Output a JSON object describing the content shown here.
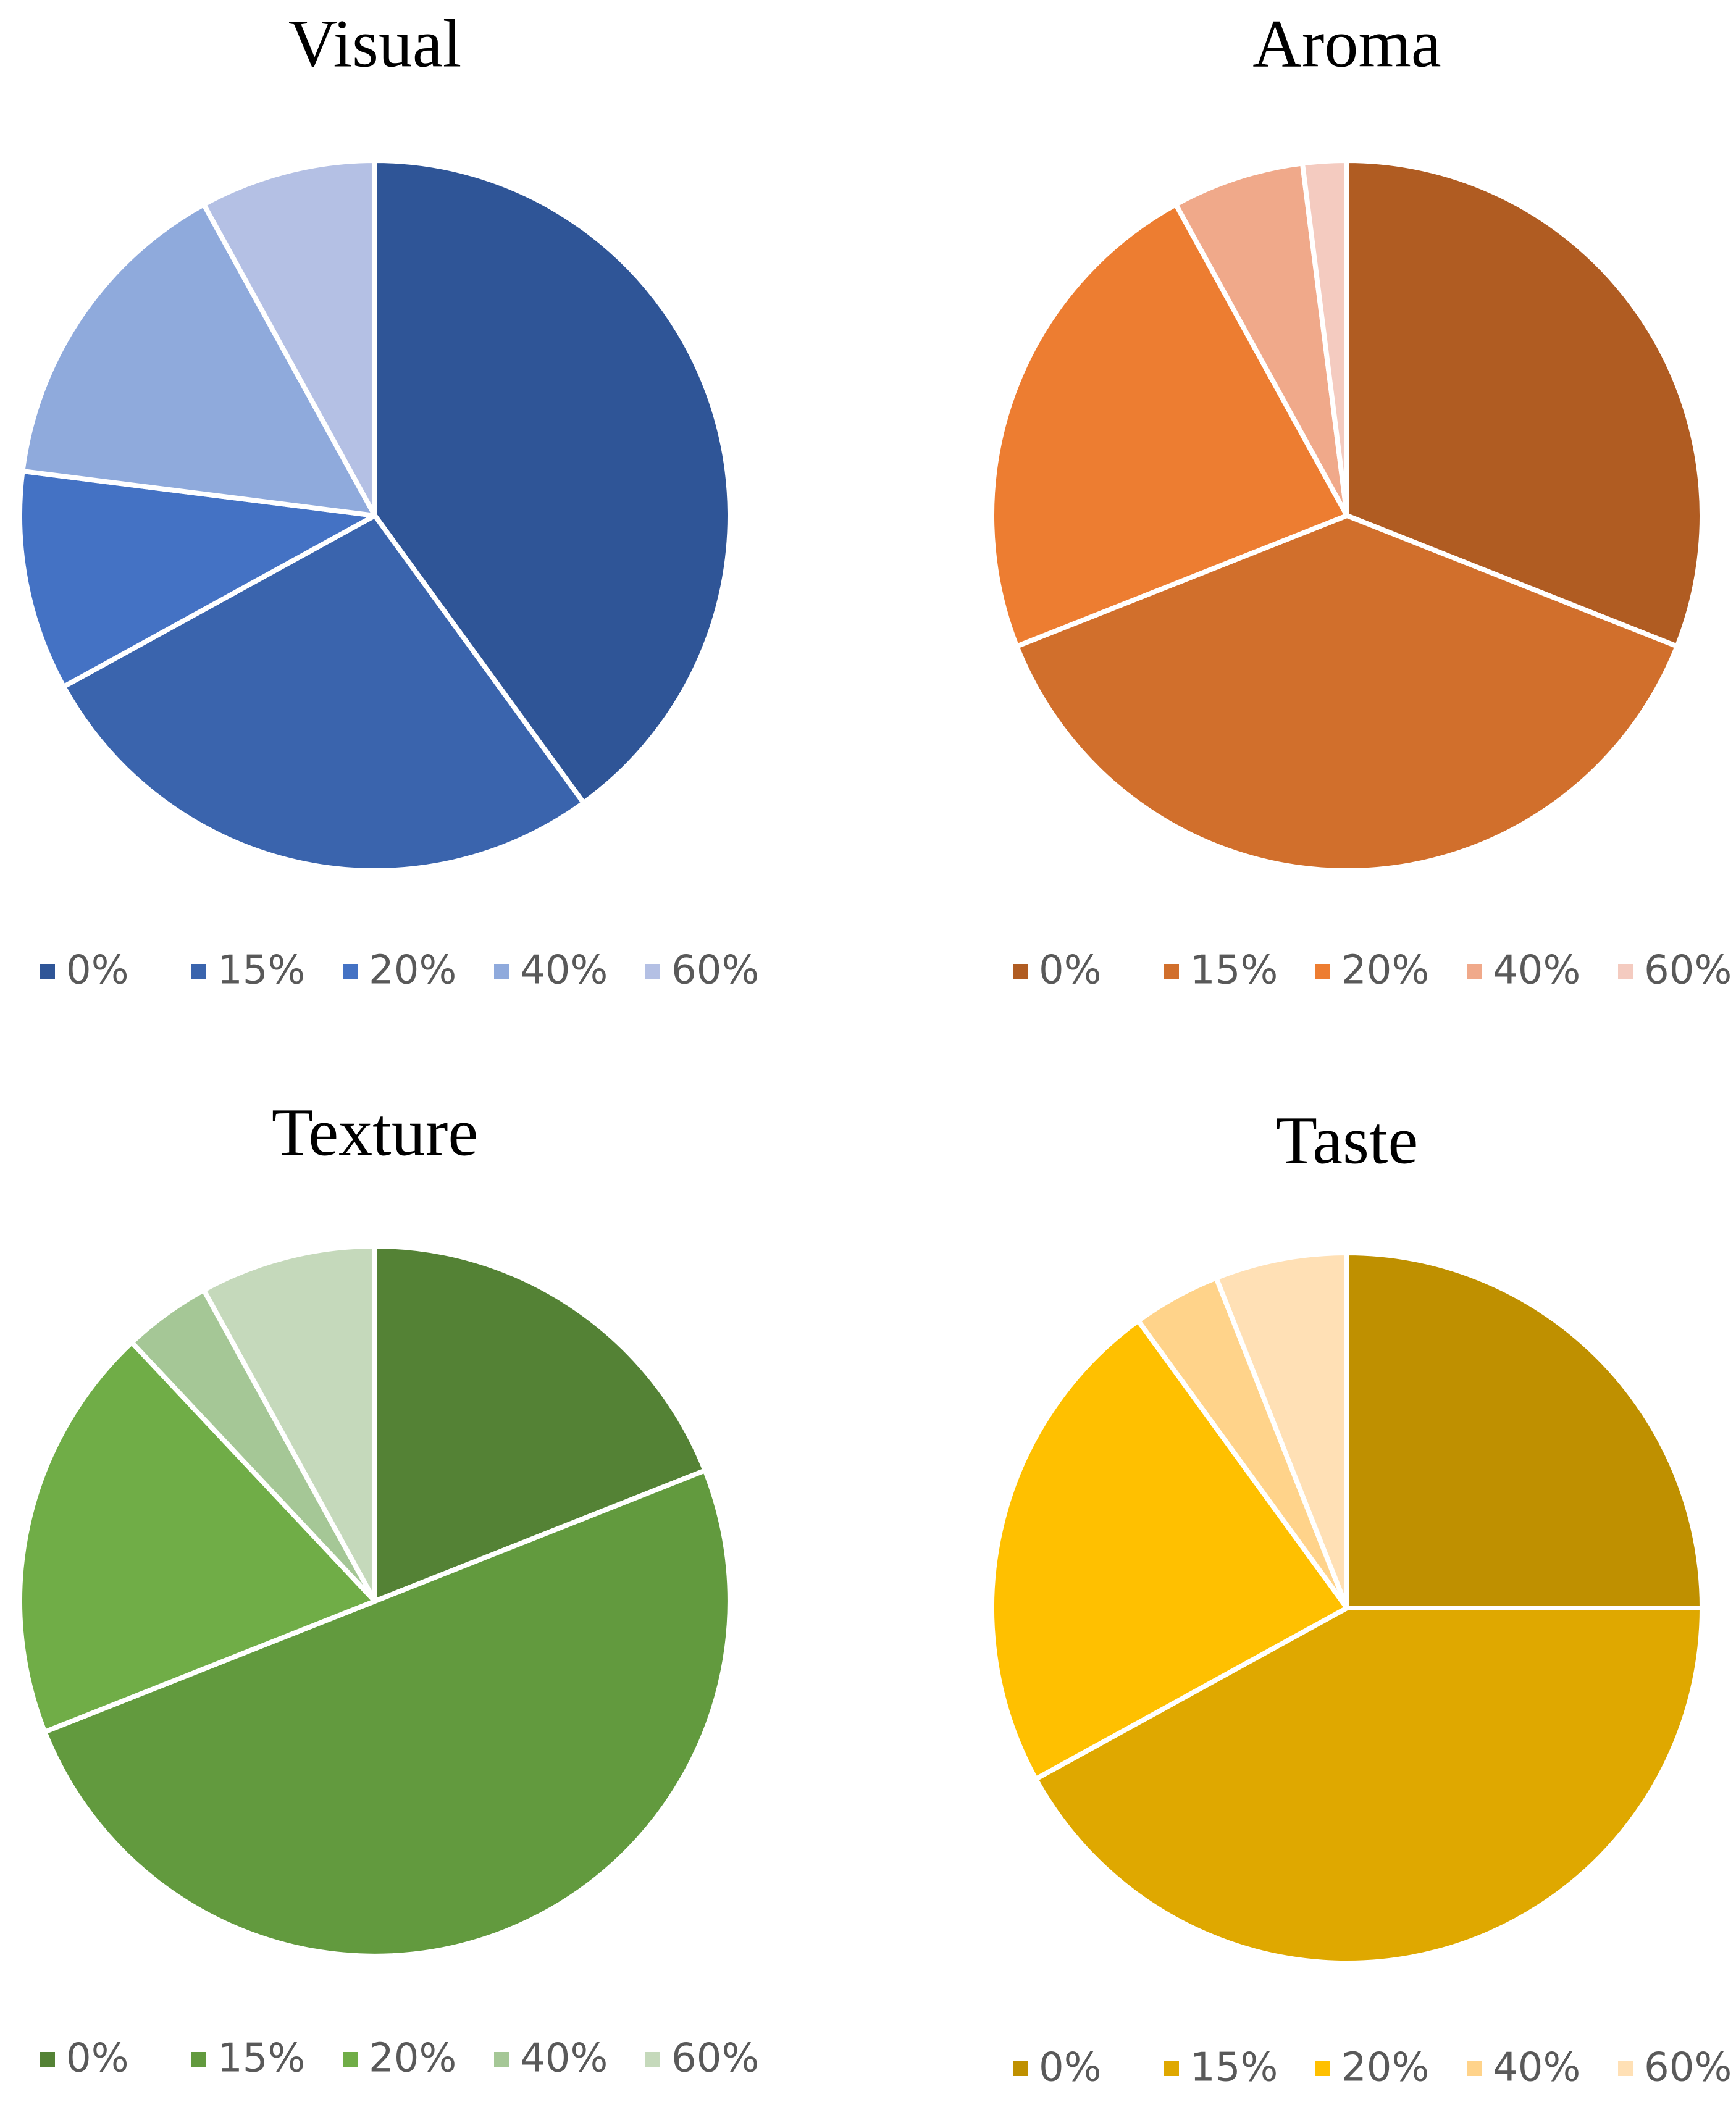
{
  "chart_data": [
    {
      "type": "pie",
      "title": "Visual",
      "categories": [
        "0%",
        "15%",
        "20%",
        "40%",
        "60%"
      ],
      "values": [
        40,
        27,
        10,
        15,
        8
      ],
      "colors": [
        "#2f5597",
        "#3a64ad",
        "#4472c4",
        "#8faadc",
        "#b4c0e4"
      ],
      "legend": "bottom"
    },
    {
      "type": "pie",
      "title": "Aroma",
      "categories": [
        "0%",
        "15%",
        "20%",
        "40%",
        "60%"
      ],
      "values": [
        31,
        38,
        23,
        6,
        2
      ],
      "colors": [
        "#b05c22",
        "#d16f2c",
        "#ed7d31",
        "#f0a98a",
        "#f4cbc0"
      ],
      "legend": "bottom"
    },
    {
      "type": "pie",
      "title": "Texture",
      "categories": [
        "0%",
        "15%",
        "20%",
        "40%",
        "60%"
      ],
      "values": [
        19,
        50,
        19,
        4,
        8
      ],
      "colors": [
        "#548235",
        "#629a3e",
        "#70ad47",
        "#a5c796",
        "#c5d9bb"
      ],
      "legend": "bottom"
    },
    {
      "type": "pie",
      "title": "Taste",
      "categories": [
        "0%",
        "15%",
        "20%",
        "40%",
        "60%"
      ],
      "values": [
        25,
        42,
        23,
        4,
        6
      ],
      "colors": [
        "#bf9000",
        "#dfa800",
        "#ffc000",
        "#ffd38a",
        "#ffe0b5"
      ],
      "legend": "bottom"
    }
  ]
}
